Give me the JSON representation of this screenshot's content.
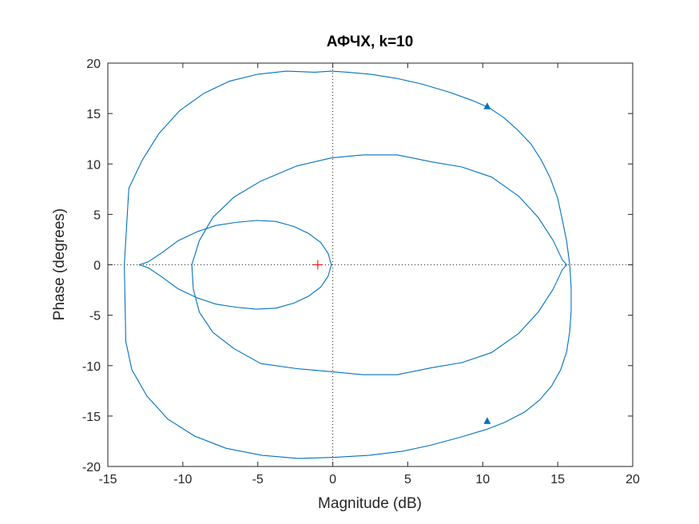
{
  "chart_data": {
    "type": "line",
    "title": "АФЧХ, k=10",
    "xlabel": "Magnitude (dB)",
    "ylabel": "Phase (degrees)",
    "xlim": [
      -15,
      20
    ],
    "ylim": [
      -20,
      20
    ],
    "xticks": [
      -15,
      -10,
      -5,
      0,
      5,
      10,
      15,
      20
    ],
    "yticks": [
      -20,
      -15,
      -10,
      -5,
      0,
      5,
      10,
      15,
      20
    ],
    "grid": false,
    "zero_lines": "dotted",
    "line_color": "#0072BD",
    "marker_color": "#FF0000",
    "series": [
      {
        "x": [
          -0.1,
          1.0,
          2.5,
          4.2,
          6.0,
          7.8,
          9.3,
          10.4,
          11.4,
          12.3,
          13.2,
          13.9,
          14.5,
          15.0,
          15.3,
          15.6,
          15.8,
          15.9,
          15.9,
          15.8,
          15.6,
          15.2,
          14.6,
          13.8,
          12.8,
          11.5,
          10.3,
          8.5,
          6.5,
          4.6,
          2.4,
          0.1,
          -2.3,
          -4.7,
          -7.1,
          -9.2,
          -11.0,
          -12.4,
          -13.4,
          -13.8,
          -13.9,
          -13.6,
          -12.7,
          -11.6,
          -10.2,
          -8.6,
          -6.9,
          -5.0,
          -3.1,
          -1.2,
          -0.1
        ],
        "y": [
          19.2,
          19.1,
          18.9,
          18.5,
          17.9,
          17.1,
          16.3,
          15.6,
          14.6,
          13.4,
          12.0,
          10.4,
          8.6,
          6.6,
          4.5,
          2.3,
          0.0,
          -2.3,
          -4.5,
          -6.6,
          -8.6,
          -10.4,
          -12.0,
          -13.4,
          -14.6,
          -15.6,
          -16.3,
          -17.1,
          -17.9,
          -18.5,
          -18.9,
          -19.1,
          -19.2,
          -18.9,
          -18.2,
          -17.0,
          -15.3,
          -13.0,
          -10.4,
          -7.6,
          0.0,
          7.6,
          10.4,
          13.0,
          15.3,
          17.0,
          18.2,
          18.9,
          19.2,
          19.1,
          19.2
        ]
      },
      {
        "x": [
          -0.1,
          2.0,
          4.3,
          6.6,
          8.6,
          10.6,
          12.4,
          13.7,
          14.7,
          15.3,
          15.6,
          15.3,
          14.7,
          13.7,
          12.4,
          10.6,
          8.6,
          6.6,
          4.3,
          2.0,
          -0.1,
          -2.4,
          -4.8,
          -6.6,
          -8.0,
          -8.9,
          -9.4,
          -9.3,
          -8.9,
          -8.0,
          -6.6,
          -4.8,
          -2.4,
          -0.1
        ],
        "y": [
          -10.6,
          -10.9,
          -10.9,
          -10.2,
          -9.7,
          -8.7,
          -6.8,
          -4.7,
          -2.4,
          -0.5,
          0.0,
          0.5,
          2.4,
          4.7,
          6.8,
          8.7,
          9.7,
          10.2,
          10.9,
          10.9,
          10.6,
          9.8,
          8.3,
          6.7,
          4.7,
          2.4,
          0.0,
          -2.4,
          -4.7,
          -6.7,
          -8.3,
          -9.8,
          -10.3,
          -10.6
        ]
      },
      {
        "x": [
          -0.1,
          -0.3,
          -0.8,
          -1.6,
          -2.6,
          -3.8,
          -5.1,
          -6.5,
          -7.8,
          -9.0,
          -10.3,
          -11.4,
          -12.3,
          -12.9,
          -12.3,
          -11.4,
          -10.3,
          -9.0,
          -7.8,
          -6.5,
          -5.1,
          -3.8,
          -2.6,
          -1.6,
          -0.8,
          -0.3,
          -0.1
        ],
        "y": [
          0.0,
          -1.1,
          -2.2,
          -3.1,
          -3.8,
          -4.3,
          -4.4,
          -4.2,
          -3.9,
          -3.3,
          -2.4,
          -1.2,
          -0.3,
          0.0,
          0.3,
          1.2,
          2.4,
          3.3,
          3.9,
          4.2,
          4.4,
          4.3,
          3.8,
          3.1,
          2.2,
          1.1,
          0.0
        ]
      }
    ],
    "arrows": [
      {
        "x": 10.3,
        "y": 15.7,
        "direction": "up"
      },
      {
        "x": 10.3,
        "y": -15.5,
        "direction": "up"
      }
    ],
    "critical_point": {
      "x": -1,
      "y": 0
    }
  }
}
